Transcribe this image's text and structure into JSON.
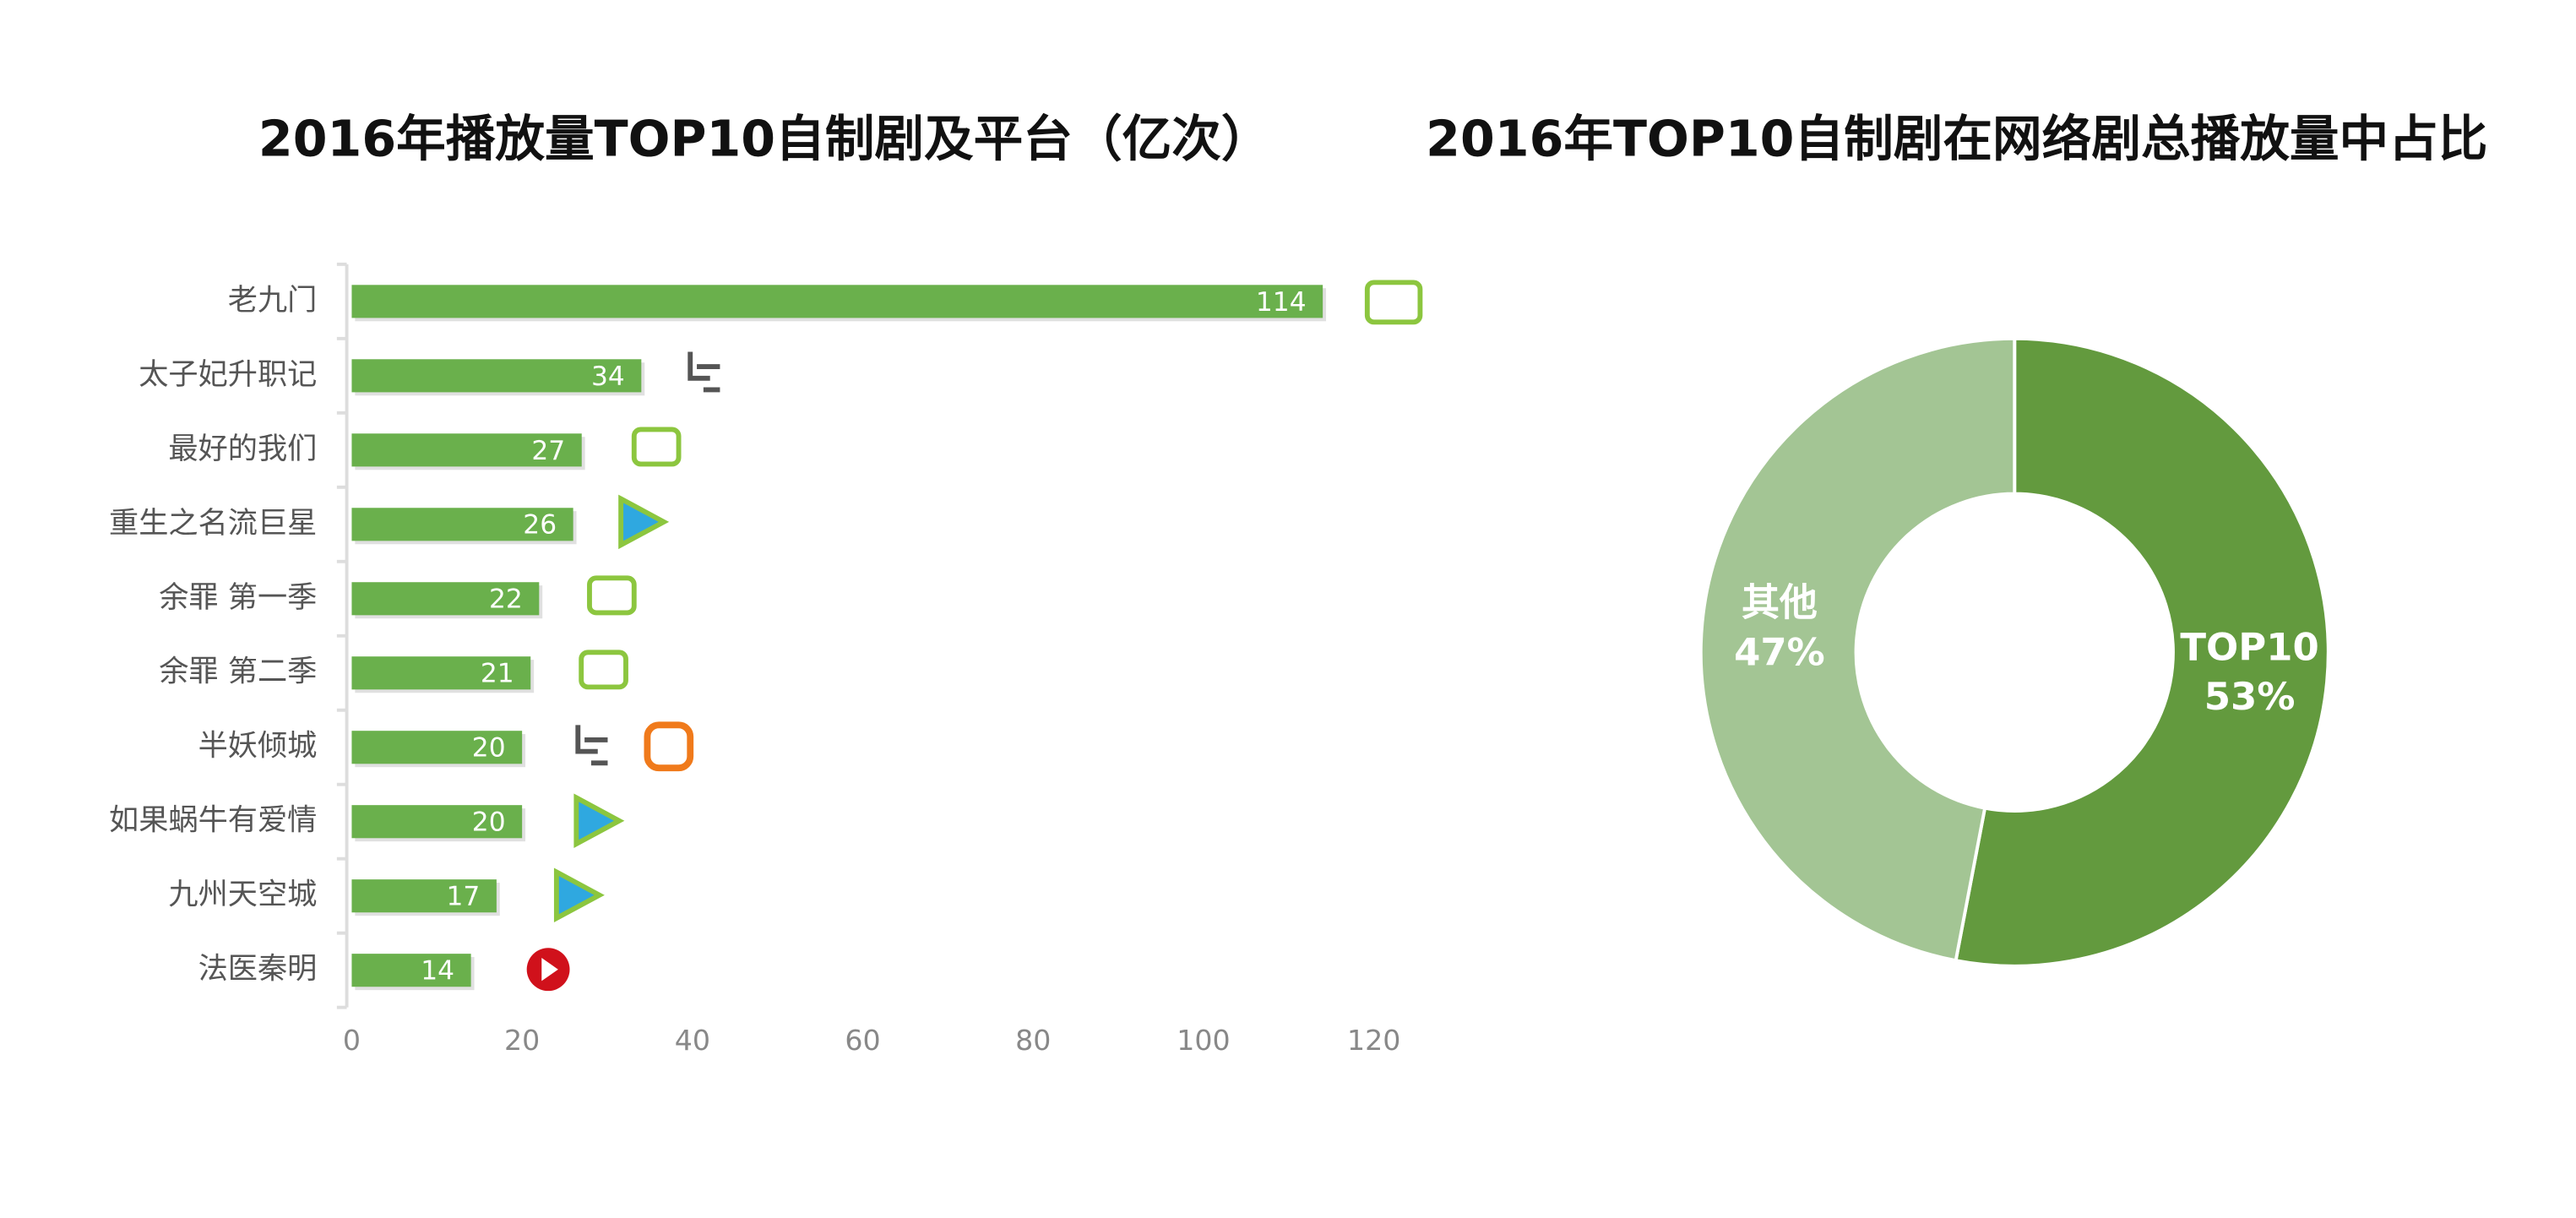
{
  "chart_data": [
    {
      "type": "bar",
      "orientation": "horizontal",
      "title": "2016年播放量TOP10自制剧及平台（亿次）",
      "categories": [
        "老九门",
        "太子妃升职记",
        "最好的我们",
        "重生之名流巨星",
        "余罪 第一季",
        "余罪 第二季",
        "半妖倾城",
        "如果蜗牛有爱情",
        "九州天空城",
        "法医秦明"
      ],
      "values": [
        114,
        34,
        27,
        26,
        22,
        21,
        20,
        20,
        17,
        14
      ],
      "color": "#6ab04c",
      "xlim": [
        0,
        120
      ],
      "xticks": [
        0,
        20,
        40,
        60,
        80,
        100,
        120
      ]
    },
    {
      "type": "pie",
      "title": "2016年TOP10自制剧在网络剧总播放量中占比",
      "categories": [
        "TOP10",
        "其他"
      ],
      "values": [
        53,
        47
      ],
      "value_labels": [
        "53%",
        "47%"
      ],
      "colors": [
        "#639a3e",
        "#a3c594"
      ],
      "donut": true
    }
  ]
}
